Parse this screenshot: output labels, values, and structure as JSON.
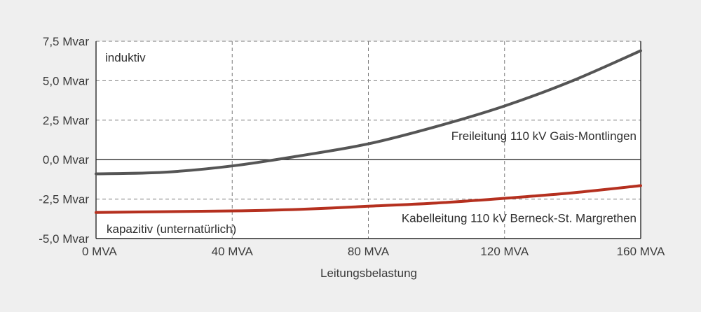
{
  "chart_data": {
    "type": "line",
    "xlabel": "Leitungsbelastung",
    "ylabel": "",
    "xlim": [
      0,
      160
    ],
    "ylim": [
      -5,
      7.5
    ],
    "x_ticks": [
      0,
      40,
      80,
      120,
      160
    ],
    "x_tick_labels": [
      "0 MVA",
      "40 MVA",
      "80 MVA",
      "120 MVA",
      "160 MVA"
    ],
    "y_ticks": [
      7.5,
      5,
      2.5,
      0,
      -2.5,
      -5
    ],
    "y_tick_labels": [
      "7,5 Mvar",
      "5,0 Mvar",
      "2,5 Mvar",
      "0,0 Mvar",
      "-2,5 Mvar",
      "-5,0 Mvar"
    ],
    "grid": true,
    "x": [
      0,
      20,
      40,
      60,
      80,
      100,
      120,
      140,
      160
    ],
    "series": [
      {
        "name": "Freileitung 110 kV Gais-Montlingen",
        "color": "#555555",
        "values": [
          -0.9,
          -0.8,
          -0.4,
          0.25,
          1.0,
          2.1,
          3.4,
          5.0,
          6.9
        ]
      },
      {
        "name": "Kabelleitung 110 kV Berneck-St. Margrethen",
        "color": "#b5301f",
        "values": [
          -3.35,
          -3.3,
          -3.25,
          -3.15,
          -2.95,
          -2.75,
          -2.45,
          -2.1,
          -1.65
        ]
      }
    ],
    "annotations": {
      "top_left": "induktiv",
      "bottom_left": "kapazitiv (unternatürlich)"
    }
  }
}
